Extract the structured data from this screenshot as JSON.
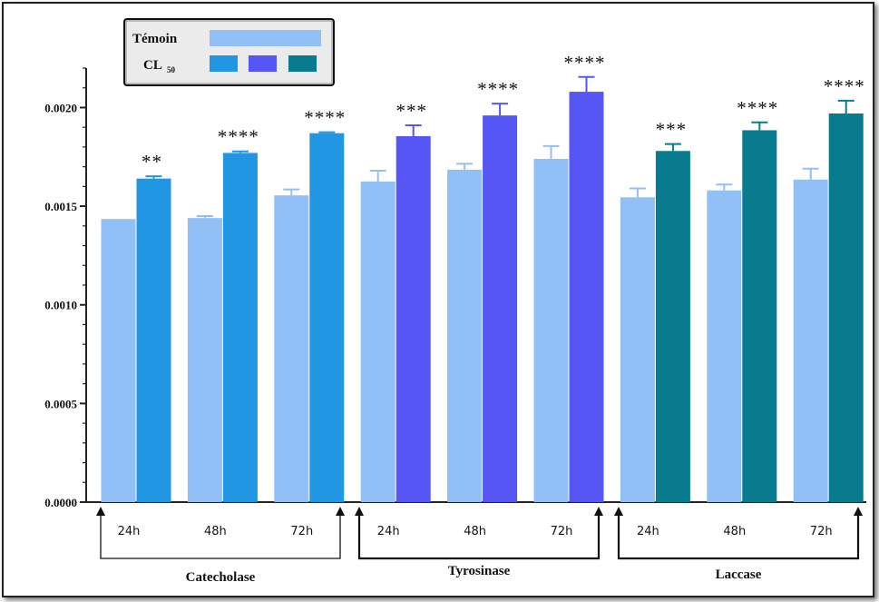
{
  "chart_data": {
    "type": "bar",
    "ylim": [
      0,
      0.0022
    ],
    "y_ticks": [
      "0.0000",
      "0.0005",
      "0.0010",
      "0.0015",
      "0.0020"
    ],
    "y_tick_values": [
      0,
      0.0005,
      0.001,
      0.0015,
      0.002
    ],
    "grid": false,
    "legend": {
      "placement": "top-left",
      "control_label": "Témoin",
      "treated_label": "CL",
      "treated_subscript": "50"
    },
    "groups": [
      {
        "name": "Catecholase",
        "treated_color": "#2196e3",
        "categories": [
          "24h",
          "48h",
          "72h"
        ],
        "control": [
          0.001435,
          0.00144,
          0.001555
        ],
        "control_err": [
          0,
          1e-05,
          3e-05
        ],
        "treated": [
          0.00164,
          0.00177,
          0.00187
        ],
        "treated_err": [
          1.2e-05,
          8e-06,
          5e-06
        ],
        "significance": [
          "**",
          "****",
          "****"
        ]
      },
      {
        "name": "Tyrosinase",
        "treated_color": "#5656f5",
        "categories": [
          "24h",
          "48h",
          "72h"
        ],
        "control": [
          0.001625,
          0.001685,
          0.00174
        ],
        "control_err": [
          5.5e-05,
          3e-05,
          6.5e-05
        ],
        "treated": [
          0.001855,
          0.00196,
          0.00208
        ],
        "treated_err": [
          5.5e-05,
          6e-05,
          7.5e-05
        ],
        "significance": [
          "***",
          "****",
          "****"
        ]
      },
      {
        "name": "Laccase",
        "treated_color": "#097b8e",
        "categories": [
          "24h",
          "48h",
          "72h"
        ],
        "control": [
          0.001545,
          0.00158,
          0.001635
        ],
        "control_err": [
          4.5e-05,
          3e-05,
          5.5e-05
        ],
        "treated": [
          0.00178,
          0.001885,
          0.00197
        ],
        "treated_err": [
          3.5e-05,
          4e-05,
          6.5e-05
        ],
        "significance": [
          "***",
          "****",
          "****"
        ]
      }
    ]
  },
  "colors": {
    "control": "#93bff7",
    "catecholase": "#2196e3",
    "tyrosinase": "#5656f5",
    "laccase": "#097b8e",
    "axis": "#222222"
  }
}
